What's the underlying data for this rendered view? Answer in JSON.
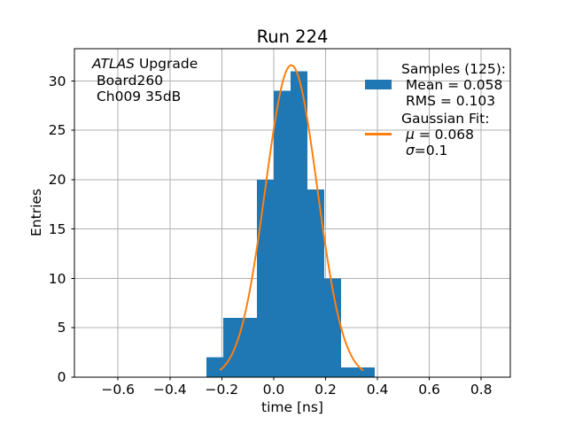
{
  "figure": {
    "title": "Run 224",
    "background": "#ffffff"
  },
  "annotation": {
    "lines": [
      {
        "pre": "",
        "italic": "ATLAS",
        "text": " Upgrade"
      },
      {
        "pre": " ",
        "italic": "",
        "text": "Board260"
      },
      {
        "pre": " ",
        "italic": "",
        "text": "Ch009 35dB"
      }
    ]
  },
  "axes": {
    "xlabel": "time [ns]",
    "ylabel": "Entries",
    "grid_color": "#b0b0b0",
    "spine_color": "#000000",
    "text_color": "#000000"
  },
  "legend": {
    "position": "upper right",
    "entries": [
      {
        "swatch": "histogram-patch",
        "color": "#1f77b4",
        "lines": [
          {
            "pre": "",
            "italic": "",
            "text": "Samples (125):"
          },
          {
            "pre": " ",
            "italic": "",
            "text": "Mean = 0.058"
          },
          {
            "pre": " ",
            "italic": "",
            "text": "RMS = 0.103"
          }
        ]
      },
      {
        "swatch": "fit-line",
        "color": "#ff7f0e",
        "lines": [
          {
            "pre": "",
            "italic": "",
            "text": "Gaussian Fit:"
          },
          {
            "pre": " ",
            "italic": "μ",
            "text": " = 0.068"
          },
          {
            "pre": " ",
            "italic": "σ",
            "text": "=0.1"
          }
        ]
      }
    ]
  },
  "chart_data": {
    "type": "bar",
    "subtype": "histogram-with-gaussian-fit",
    "title": "Run 224",
    "xlabel": "time [ns]",
    "ylabel": "Entries",
    "xlim": [
      -0.768,
      0.912
    ],
    "ylim": [
      0,
      33.27
    ],
    "grid": true,
    "legend_position": "upper right",
    "xticks": [
      {
        "v": -0.6,
        "label": "−0.6"
      },
      {
        "v": -0.4,
        "label": "−0.4"
      },
      {
        "v": -0.2,
        "label": "−0.2"
      },
      {
        "v": 0.0,
        "label": "0.0"
      },
      {
        "v": 0.2,
        "label": "0.2"
      },
      {
        "v": 0.4,
        "label": "0.4"
      },
      {
        "v": 0.6,
        "label": "0.6"
      },
      {
        "v": 0.8,
        "label": "0.8"
      }
    ],
    "yticks": [
      {
        "v": 0,
        "label": "0"
      },
      {
        "v": 5,
        "label": "5"
      },
      {
        "v": 10,
        "label": "10"
      },
      {
        "v": 15,
        "label": "15"
      },
      {
        "v": 20,
        "label": "20"
      },
      {
        "v": 25,
        "label": "25"
      },
      {
        "v": 30,
        "label": "30"
      }
    ],
    "histogram": {
      "color": "#1f77b4",
      "bin_start": -0.26,
      "bin_width": 0.065,
      "bin_edges": [
        -0.26,
        -0.195,
        -0.13,
        -0.065,
        0.0,
        0.065,
        0.13,
        0.195,
        0.26,
        0.325,
        0.39
      ],
      "counts": [
        2,
        6,
        6,
        20,
        29,
        31,
        19,
        10,
        1,
        1
      ],
      "n_samples": 125,
      "mean": 0.058,
      "rms": 0.103
    },
    "gaussian_fit": {
      "color": "#ff7f0e",
      "mu": 0.068,
      "sigma": 0.1,
      "amplitude": 31.6,
      "x_start": -0.205,
      "x_end": 0.343
    }
  }
}
